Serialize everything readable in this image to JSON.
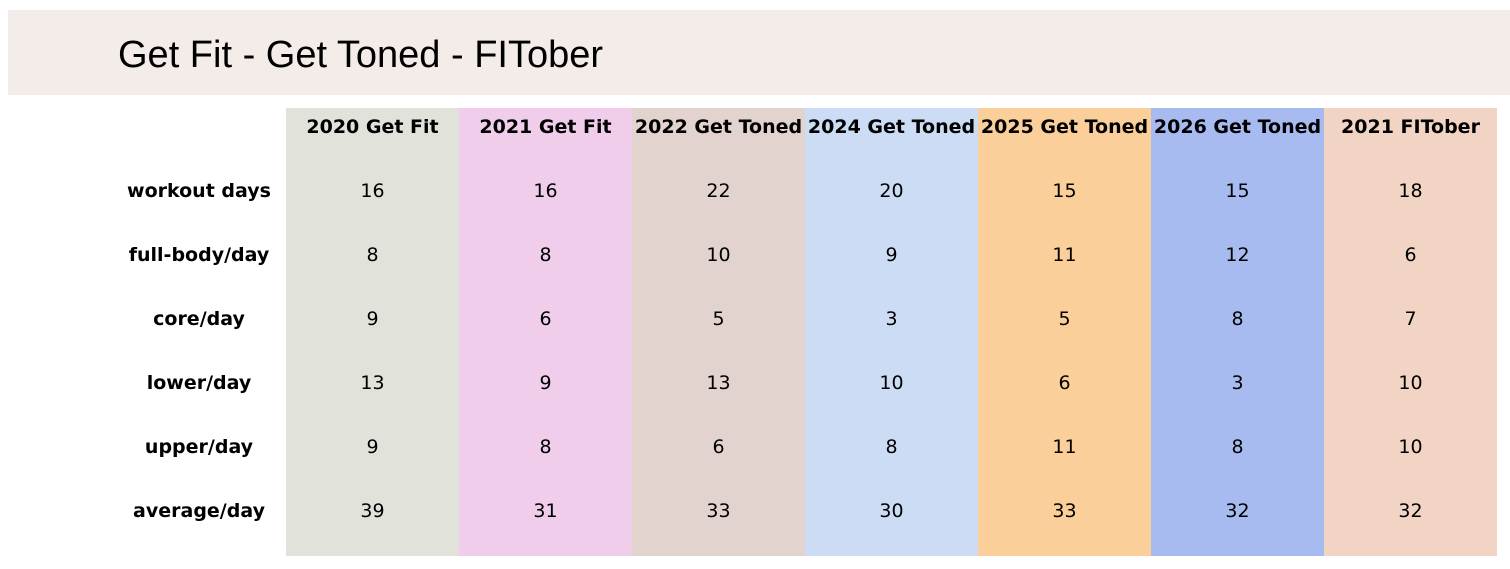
{
  "header": {
    "title": "Get Fit - Get Toned - FITober"
  },
  "table": {
    "columns": [
      "2020 Get Fit",
      "2021 Get Fit",
      "2022 Get Toned",
      "2024 Get Toned",
      "2025 Get Toned",
      "2026 Get Toned",
      "2021 FITober"
    ],
    "rows": [
      {
        "label": "workout days",
        "values": [
          16,
          16,
          22,
          20,
          15,
          15,
          18
        ]
      },
      {
        "label": "full-body/day",
        "values": [
          8,
          8,
          10,
          9,
          11,
          12,
          6
        ]
      },
      {
        "label": "core/day",
        "values": [
          9,
          6,
          5,
          3,
          5,
          8,
          7
        ]
      },
      {
        "label": "lower/day",
        "values": [
          13,
          9,
          13,
          10,
          6,
          3,
          10
        ]
      },
      {
        "label": "upper/day",
        "values": [
          9,
          8,
          6,
          8,
          11,
          8,
          10
        ]
      },
      {
        "label": "average/day",
        "values": [
          39,
          31,
          33,
          30,
          33,
          32,
          32
        ]
      }
    ]
  }
}
